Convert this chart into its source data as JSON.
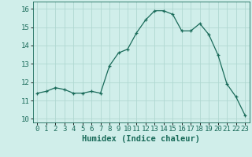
{
  "x": [
    0,
    1,
    2,
    3,
    4,
    5,
    6,
    7,
    8,
    9,
    10,
    11,
    12,
    13,
    14,
    15,
    16,
    17,
    18,
    19,
    20,
    21,
    22,
    23
  ],
  "y": [
    11.4,
    11.5,
    11.7,
    11.6,
    11.4,
    11.4,
    11.5,
    11.4,
    12.9,
    13.6,
    13.8,
    14.7,
    15.4,
    15.9,
    15.9,
    15.7,
    14.8,
    14.8,
    15.2,
    14.6,
    13.5,
    11.9,
    11.2,
    10.2
  ],
  "xlabel": "Humidex (Indice chaleur)",
  "xlim": [
    -0.5,
    23.5
  ],
  "ylim": [
    9.8,
    16.4
  ],
  "yticks": [
    10,
    11,
    12,
    13,
    14,
    15,
    16
  ],
  "xticks": [
    0,
    1,
    2,
    3,
    4,
    5,
    6,
    7,
    8,
    9,
    10,
    11,
    12,
    13,
    14,
    15,
    16,
    17,
    18,
    19,
    20,
    21,
    22,
    23
  ],
  "line_color": "#1a6b5a",
  "marker": "+",
  "bg_color": "#d0eeea",
  "grid_color": "#b0d8d2",
  "tick_label_fontsize": 6.5,
  "xlabel_fontsize": 7.5
}
